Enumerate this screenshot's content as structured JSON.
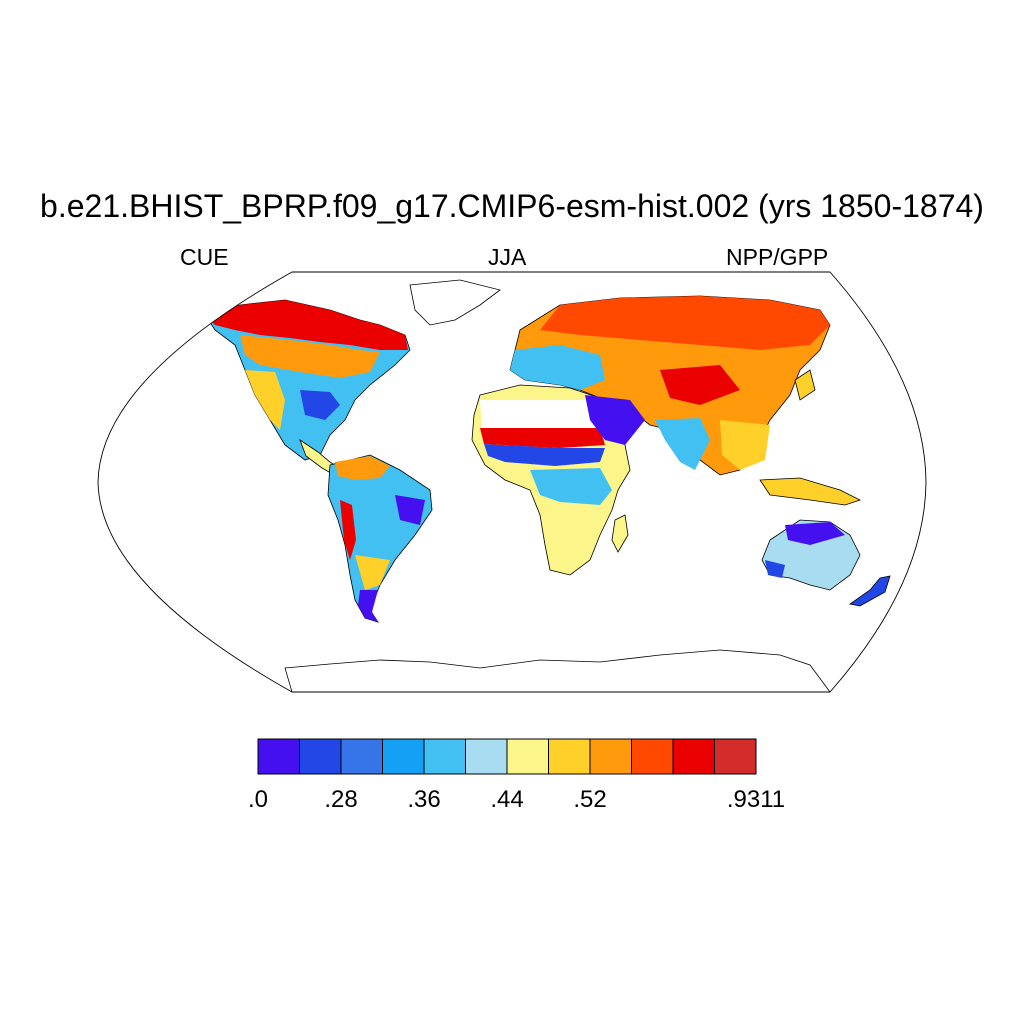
{
  "title": "b.e21.BHIST_BPRP.f09_g17.CMIP6-esm-hist.002 (yrs 1850-1874)",
  "subtitles": {
    "left": "CUE",
    "center": "JJA",
    "right": "NPP/GPP"
  },
  "colorbar": {
    "colors": [
      "#4410f0",
      "#2346e6",
      "#3575e8",
      "#13a0f5",
      "#42c0f2",
      "#a8dcf0",
      "#fcf58a",
      "#ffcf2a",
      "#ff9a0c",
      "#ff4800",
      "#eb0000",
      "#d42b2b"
    ],
    "labels": [
      {
        "text": ".0",
        "boundary": 0
      },
      {
        "text": ".28",
        "boundary": 2
      },
      {
        "text": ".36",
        "boundary": 4
      },
      {
        "text": ".44",
        "boundary": 6
      },
      {
        "text": ".52",
        "boundary": 8
      },
      {
        "text": ".9311",
        "boundary": 12
      }
    ]
  },
  "map": {
    "projection": "Robinson",
    "field": "CUE (NPP/GPP)",
    "season": "JJA",
    "land_fill_by_region": {
      "north_america_high_latitudes": "#eb0000",
      "north_america_midlatitudes": "#42c0f2",
      "amazon": "#42c0f2",
      "patagonia": "#4410f0",
      "sahara": "#ffffff",
      "sahel": "#eb0000",
      "central_africa": "#fcf58a",
      "eurasia_north": "#ff4800",
      "central_asia": "#ff9a0c",
      "south_asia": "#42c0f2",
      "southeast_asia": "#ffcf2a",
      "australia_north": "#4410f0",
      "australia_interior": "#a8dcf0",
      "greenland": "#ffffff",
      "antarctica": "#ffffff"
    }
  }
}
